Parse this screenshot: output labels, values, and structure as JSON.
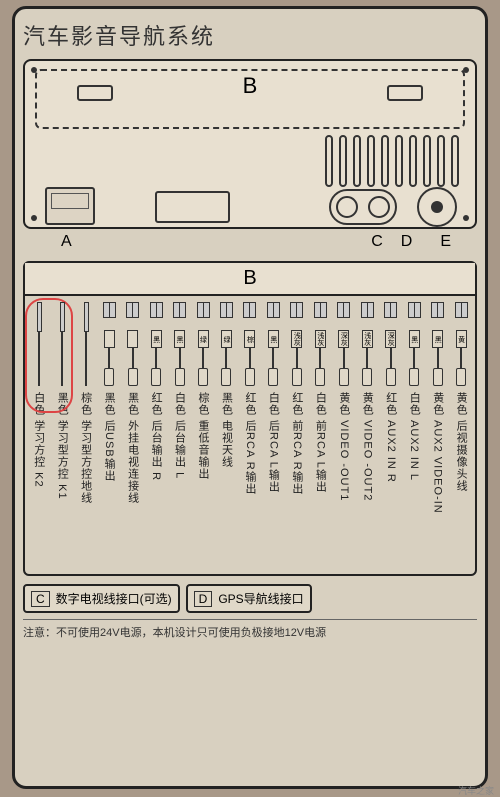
{
  "title": "汽车影音导航系统",
  "panel": {
    "b_label": "B",
    "a": "A",
    "c": "C",
    "d": "D",
    "e": "E"
  },
  "pinout": {
    "header": "B",
    "wires": [
      {
        "thin": true,
        "tag": "",
        "label": "白色 学习方控 K2"
      },
      {
        "thin": true,
        "tag": "",
        "label": "黑色 学习型方控 K1"
      },
      {
        "thin": true,
        "tag": "",
        "label": "棕色 学习型方控地线"
      },
      {
        "tag": "",
        "label": "黑色 后USB输出",
        "conn": "usb"
      },
      {
        "tag": "",
        "label": "黑色 外挂电视连接线"
      },
      {
        "tag": "黑",
        "label": "红色 后台输出 R"
      },
      {
        "tag": "黑",
        "label": "白色 后台输出 L"
      },
      {
        "tag": "绿",
        "label": "棕色 重低音输出"
      },
      {
        "tag": "绿",
        "label": "黑色 电视天线"
      },
      {
        "tag": "棕",
        "label": "红色 后RCA R输出"
      },
      {
        "tag": "黑",
        "label": "白色 后RCA L输出"
      },
      {
        "tag": "浅灰",
        "label": "红色 前RCA R输出"
      },
      {
        "tag": "浅灰",
        "label": "白色 前RCA L输出"
      },
      {
        "tag": "深灰",
        "label": "黄色 VIDEO -OUT1"
      },
      {
        "tag": "浅灰",
        "label": "黄色 VIDEO -OUT2"
      },
      {
        "tag": "深灰",
        "label": "红色 AUX2 IN R"
      },
      {
        "tag": "黑",
        "label": "白色 AUX2 IN L"
      },
      {
        "tag": "黑",
        "label": "黄色 AUX2 VIDEO-IN"
      },
      {
        "tag": "黄",
        "label": "黄色 后视摄像头线"
      }
    ]
  },
  "bottom": {
    "c_tag": "C",
    "c_text": "数字电视线接口(可选)",
    "d_tag": "D",
    "d_text": "GPS导航线接口",
    "note": "注意：不可使用24V电源，本机设计只可使用负极接地12V电源"
  },
  "watermark": "汽车之家",
  "colors": {
    "panel_bg": "#d8d0c0",
    "border": "#222",
    "red": "#d44"
  }
}
